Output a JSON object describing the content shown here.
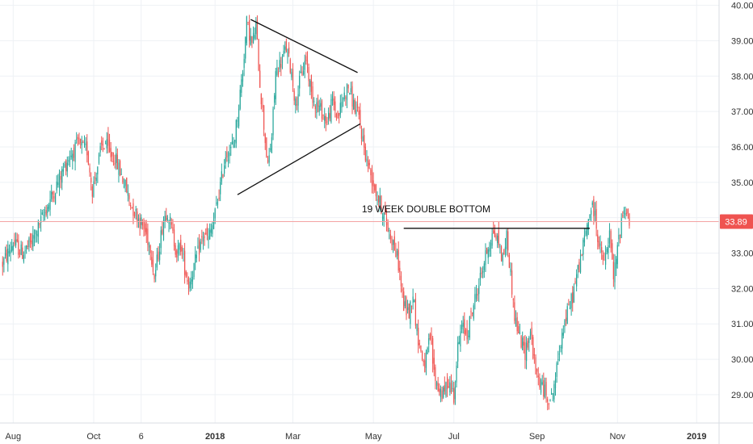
{
  "chart_data": {
    "type": "candlestick",
    "title": "",
    "y_axis": {
      "position": "right",
      "range": [
        28.2,
        40.15
      ],
      "ticks": [
        "29.00",
        "30.00",
        "31.00",
        "32.00",
        "33.00",
        "34.00",
        "35.00",
        "36.00",
        "37.00",
        "38.00",
        "39.00",
        "40.00"
      ]
    },
    "x_axis": {
      "range_days": [
        -10,
        535
      ],
      "ticks": [
        {
          "label": "Aug",
          "day": 0,
          "bold": false
        },
        {
          "label": "Oct",
          "day": 61,
          "bold": false
        },
        {
          "label": "6",
          "day": 97,
          "bold": false
        },
        {
          "label": "2018",
          "day": 153,
          "bold": true
        },
        {
          "label": "Mar",
          "day": 212,
          "bold": false
        },
        {
          "label": "May",
          "day": 273,
          "bold": false
        },
        {
          "label": "Jul",
          "day": 334,
          "bold": false
        },
        {
          "label": "Sep",
          "day": 397,
          "bold": false
        },
        {
          "label": "Nov",
          "day": 458,
          "bold": false
        },
        {
          "label": "2019",
          "day": 518,
          "bold": true
        }
      ]
    },
    "colors": {
      "up": "#26a69a",
      "down": "#ef5350",
      "last_price": "#ef5350"
    },
    "last_price": {
      "value": 33.89,
      "label": "33.89"
    },
    "annotation": {
      "text": "19 WEEK DOUBLE BOTTOM",
      "anchor_day": 313,
      "anchor_value": 34.15
    },
    "trendlines": [
      {
        "name": "triangle-upper",
        "from": [
          180,
          39.6
        ],
        "to": [
          261,
          38.1
        ]
      },
      {
        "name": "triangle-lower",
        "from": [
          170,
          34.65
        ],
        "to": [
          263,
          36.65
        ]
      },
      {
        "name": "double-bottom-neckline",
        "from": [
          296,
          33.7
        ],
        "to": [
          437,
          33.7
        ]
      }
    ],
    "close_path": [
      [
        -8,
        32.7
      ],
      [
        0,
        33.3
      ],
      [
        7,
        33.0
      ],
      [
        14,
        33.3
      ],
      [
        21,
        33.9
      ],
      [
        28,
        34.5
      ],
      [
        35,
        35.1
      ],
      [
        42,
        35.7
      ],
      [
        49,
        36.05
      ],
      [
        56,
        35.9
      ],
      [
        60,
        34.8
      ],
      [
        63,
        35.3
      ],
      [
        67,
        36.0
      ],
      [
        70,
        36.1
      ],
      [
        73,
        35.8
      ],
      [
        77,
        35.7
      ],
      [
        80,
        35.4
      ],
      [
        84,
        35.0
      ],
      [
        90,
        34.3
      ],
      [
        95,
        34.0
      ],
      [
        100,
        33.6
      ],
      [
        104,
        33.2
      ],
      [
        107,
        32.3
      ],
      [
        110,
        33.0
      ],
      [
        114,
        34.0
      ],
      [
        117,
        34.2
      ],
      [
        121,
        33.5
      ],
      [
        124,
        33.0
      ],
      [
        127,
        33.2
      ],
      [
        130,
        32.6
      ],
      [
        133,
        32.1
      ],
      [
        136,
        32.5
      ],
      [
        140,
        33.0
      ],
      [
        144,
        33.5
      ],
      [
        148,
        33.4
      ],
      [
        152,
        33.9
      ],
      [
        155,
        34.5
      ],
      [
        158,
        35.1
      ],
      [
        161,
        35.8
      ],
      [
        165,
        35.9
      ],
      [
        168,
        36.3
      ],
      [
        171,
        37.2
      ],
      [
        174,
        38.2
      ],
      [
        177,
        39.5
      ],
      [
        181,
        38.9
      ],
      [
        184,
        39.4
      ],
      [
        187,
        37.8
      ],
      [
        190,
        36.6
      ],
      [
        193,
        35.4
      ],
      [
        196,
        36.3
      ],
      [
        199,
        38.1
      ],
      [
        203,
        38.4
      ],
      [
        207,
        38.8
      ],
      [
        211,
        38.1
      ],
      [
        214,
        37.2
      ],
      [
        218,
        38.0
      ],
      [
        222,
        38.5
      ],
      [
        226,
        37.5
      ],
      [
        230,
        37.2
      ],
      [
        234,
        37.0
      ],
      [
        238,
        36.7
      ],
      [
        242,
        37.3
      ],
      [
        246,
        36.8
      ],
      [
        250,
        37.4
      ],
      [
        254,
        37.7
      ],
      [
        258,
        37.2
      ],
      [
        262,
        36.8
      ],
      [
        265,
        36.2
      ],
      [
        268,
        35.6
      ],
      [
        272,
        35.1
      ],
      [
        276,
        34.6
      ],
      [
        280,
        34.2
      ],
      [
        284,
        33.7
      ],
      [
        288,
        33.3
      ],
      [
        292,
        32.7
      ],
      [
        296,
        31.5
      ],
      [
        300,
        31.3
      ],
      [
        303,
        31.9
      ],
      [
        306,
        30.8
      ],
      [
        309,
        30.2
      ],
      [
        312,
        29.8
      ],
      [
        316,
        30.6
      ],
      [
        319,
        29.6
      ],
      [
        322,
        29.2
      ],
      [
        326,
        29.0
      ],
      [
        330,
        29.4
      ],
      [
        334,
        29.0
      ],
      [
        337,
        30.3
      ],
      [
        340,
        30.9
      ],
      [
        344,
        30.7
      ],
      [
        348,
        31.4
      ],
      [
        352,
        32.0
      ],
      [
        356,
        32.6
      ],
      [
        360,
        33.2
      ],
      [
        364,
        33.6
      ],
      [
        368,
        33.3
      ],
      [
        371,
        32.8
      ],
      [
        374,
        33.5
      ],
      [
        377,
        32.4
      ],
      [
        380,
        31.2
      ],
      [
        384,
        30.6
      ],
      [
        388,
        30.2
      ],
      [
        392,
        30.8
      ],
      [
        396,
        29.6
      ],
      [
        400,
        29.3
      ],
      [
        404,
        29.0
      ],
      [
        408,
        28.9
      ],
      [
        412,
        29.7
      ],
      [
        416,
        30.8
      ],
      [
        420,
        31.3
      ],
      [
        424,
        31.8
      ],
      [
        428,
        32.5
      ],
      [
        432,
        33.2
      ],
      [
        435,
        33.8
      ],
      [
        438,
        34.3
      ],
      [
        441,
        34.1
      ],
      [
        444,
        33.2
      ],
      [
        448,
        32.7
      ],
      [
        452,
        33.5
      ],
      [
        455,
        32.3
      ],
      [
        458,
        33.1
      ],
      [
        461,
        34.0
      ],
      [
        464,
        34.3
      ],
      [
        467,
        33.89
      ]
    ]
  }
}
